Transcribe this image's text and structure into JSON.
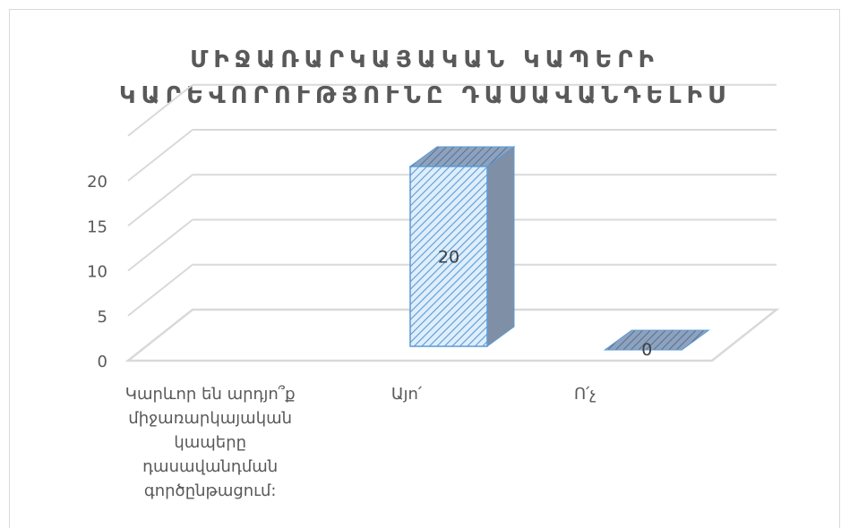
{
  "chart_data": {
    "type": "bar",
    "title_lines": [
      "ՄԻՋԱՌԱՐԿԱՅԱԿԱՆ ԿԱՊԵՐԻ",
      "ԿԱՐԵՎՈՐՈՒԹՅՈՒՆԸ ԴԱՍԱՎԱՆԴԵԼԻՍ"
    ],
    "categories": [
      "Կարևոր են արդյո՞ք միջառարկայական կապերը դասավանդման գործընթացում:",
      "Այո՛",
      "Ո՛չ"
    ],
    "category_label_lines": [
      [
        "Կարևոր են արդյո՞ք",
        "միջառարկայական",
        "կապերը",
        "դասավանդման",
        "գործընթացում:"
      ],
      [
        "Այո՛"
      ],
      [
        "Ո՛չ"
      ]
    ],
    "values": [
      null,
      20,
      0
    ],
    "data_labels": [
      "",
      "20",
      "0"
    ],
    "yticks": [
      "0",
      "5",
      "10",
      "15",
      "20"
    ],
    "ylim": [
      0,
      25
    ],
    "grid": true,
    "legend": "none",
    "style": "3d-column-hatched",
    "colors": {
      "bar_front": "#dfeefc",
      "bar_hatch": "#5b9bd5",
      "bar_side": "#7f8fa6",
      "bar_edge": "#5b9bd5",
      "grid": "#d9d9d9",
      "axis_text": "#595959",
      "title": "#595959"
    }
  }
}
